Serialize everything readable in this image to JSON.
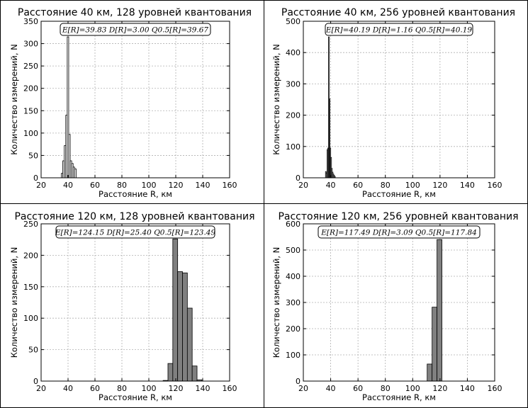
{
  "chart_data": [
    {
      "type": "bar",
      "title": "Расстояние 40 км, 128 уровней квантования",
      "xlabel": "Расстояние R, км",
      "ylabel": "Количество измерений, N",
      "stats": "E[R]=39.83  D[R]=3.00  Q0.5[R]=39.67",
      "xlim": [
        20,
        160
      ],
      "ylim": [
        0,
        350
      ],
      "xticks": [
        20,
        40,
        60,
        80,
        100,
        120,
        140,
        160
      ],
      "yticks": [
        0,
        50,
        100,
        150,
        200,
        250,
        300,
        350
      ],
      "bar_width": 1.1,
      "bar_color": "#ffffff",
      "bars": [
        {
          "x": 35.0,
          "y": 10
        },
        {
          "x": 36.1,
          "y": 38
        },
        {
          "x": 37.2,
          "y": 72
        },
        {
          "x": 38.3,
          "y": 140
        },
        {
          "x": 39.4,
          "y": 315
        },
        {
          "x": 40.5,
          "y": 97
        },
        {
          "x": 41.6,
          "y": 38
        },
        {
          "x": 42.7,
          "y": 32
        },
        {
          "x": 43.8,
          "y": 24
        },
        {
          "x": 44.9,
          "y": 20
        }
      ],
      "grid": true
    },
    {
      "type": "bar",
      "title": "Расстояние 40 км, 256 уровней квантования",
      "xlabel": "Расстояние R, км",
      "ylabel": "Количество измерений, N",
      "stats": "E[R]=40.19  D[R]=1.16  Q0.5[R]=40.19",
      "xlim": [
        20,
        160
      ],
      "ylim": [
        0,
        500
      ],
      "xticks": [
        20,
        40,
        60,
        80,
        100,
        120,
        140,
        160
      ],
      "yticks": [
        0,
        100,
        200,
        300,
        400,
        500
      ],
      "bar_width": 0.55,
      "bar_color": "#ffffff",
      "bars": [
        {
          "x": 36.2,
          "y": 20
        },
        {
          "x": 36.75,
          "y": 15
        },
        {
          "x": 37.3,
          "y": 90
        },
        {
          "x": 37.85,
          "y": 95
        },
        {
          "x": 38.4,
          "y": 450
        },
        {
          "x": 38.95,
          "y": 252
        },
        {
          "x": 39.5,
          "y": 95
        },
        {
          "x": 40.05,
          "y": 65
        },
        {
          "x": 40.6,
          "y": 30
        },
        {
          "x": 41.15,
          "y": 18
        },
        {
          "x": 41.7,
          "y": 12
        },
        {
          "x": 42.25,
          "y": 8
        },
        {
          "x": 42.8,
          "y": 4
        }
      ],
      "grid": true
    },
    {
      "type": "bar",
      "title": "Расстояние 120 км, 128 уровней квантования",
      "xlabel": "Расстояние R, км",
      "ylabel": "Количество измерений, N",
      "stats": "E[R]=124.15  D[R]=25.40  Q0.5[R]=123.49",
      "xlim": [
        20,
        160
      ],
      "ylim": [
        0,
        250
      ],
      "xticks": [
        20,
        40,
        60,
        80,
        100,
        120,
        140,
        160
      ],
      "yticks": [
        0,
        50,
        100,
        150,
        200,
        250
      ],
      "bar_width": 3.6,
      "bar_color": "#808080",
      "bars": [
        {
          "x": 110.6,
          "y": 1
        },
        {
          "x": 114.2,
          "y": 28
        },
        {
          "x": 117.8,
          "y": 226
        },
        {
          "x": 121.4,
          "y": 174
        },
        {
          "x": 125.0,
          "y": 172
        },
        {
          "x": 128.6,
          "y": 116
        },
        {
          "x": 132.2,
          "y": 24
        },
        {
          "x": 135.8,
          "y": 2
        }
      ],
      "grid": true
    },
    {
      "type": "bar",
      "title": "Расстояние 120 км, 256 уровней квантования",
      "xlabel": "Расстояние R, км",
      "ylabel": "Количество измерений, N",
      "stats": "E[R]=117.49  D[R]=3.09  Q0.5[R]=117.84",
      "xlim": [
        20,
        160
      ],
      "ylim": [
        0,
        600
      ],
      "xticks": [
        20,
        40,
        60,
        80,
        100,
        120,
        140,
        160
      ],
      "yticks": [
        0,
        100,
        200,
        300,
        400,
        500,
        600
      ],
      "bar_width": 3.6,
      "bar_color": "#808080",
      "bars": [
        {
          "x": 110.6,
          "y": 65
        },
        {
          "x": 114.2,
          "y": 282
        },
        {
          "x": 117.8,
          "y": 540
        }
      ],
      "grid": true
    }
  ]
}
